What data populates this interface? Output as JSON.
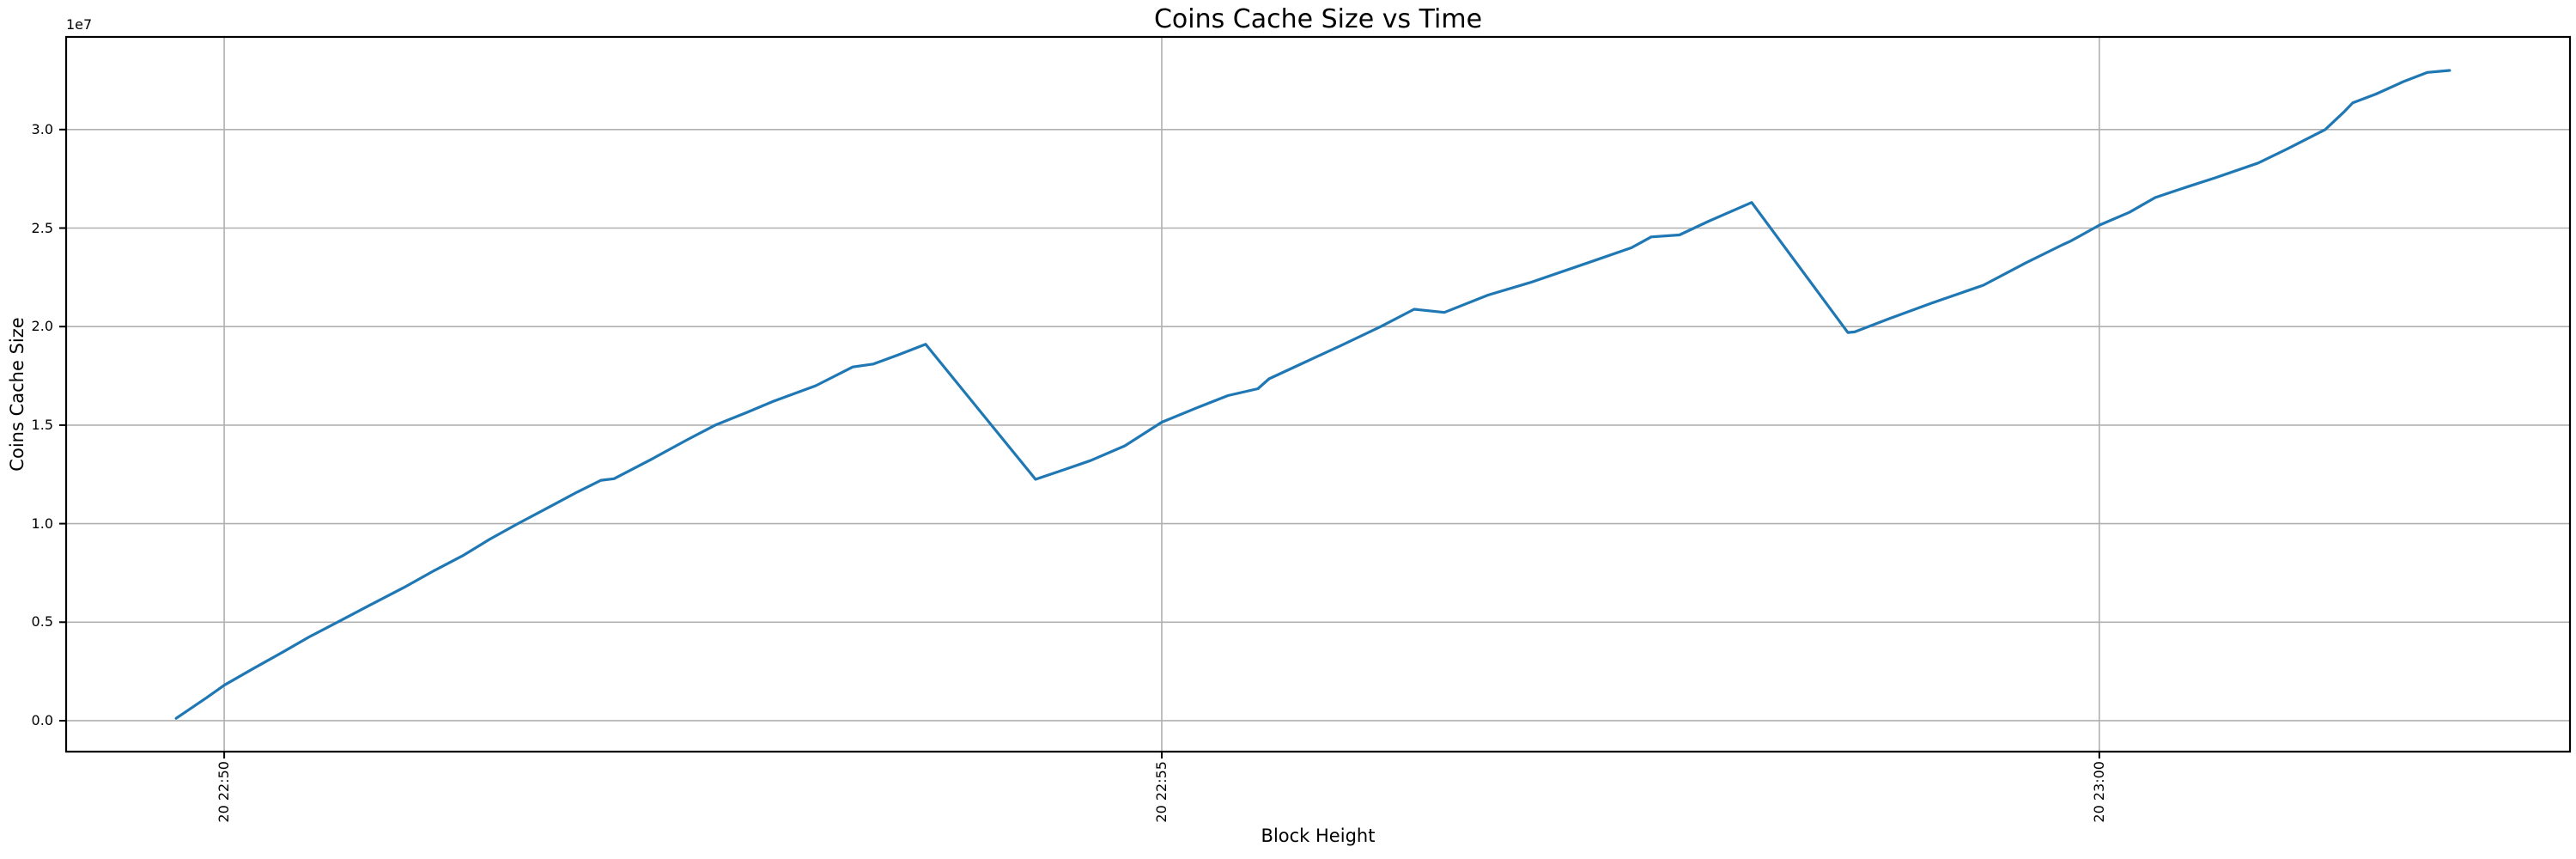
{
  "chart_data": {
    "type": "line",
    "title": "Coins Cache Size vs Time",
    "xlabel": "Block Height",
    "ylabel": "Coins Cache Size",
    "y_offset_text": "1e7",
    "grid": true,
    "legend_position": "none",
    "line_color": "#1f77b4",
    "grid_color": "#b0b0b0",
    "spine_color": "#000000",
    "text_color": "#000000",
    "x_unit": "minutes after first x tick (tick labels show 'day HH:MM')",
    "x_tick_labels": [
      "20 22:50",
      "20 22:55",
      "20 23:00"
    ],
    "x_tick_positions": [
      0,
      5,
      10
    ],
    "y_tick_values_1e7": [
      0.0,
      0.5,
      1.0,
      1.5,
      2.0,
      2.5,
      3.0
    ],
    "xlim": [
      -0.843,
      12.51
    ],
    "ylim": [
      -1570000,
      34700000
    ],
    "series": [
      {
        "name": "coins_cache_size",
        "points": [
          [
            -0.256,
            120000
          ],
          [
            -0.096,
            1150000
          ],
          [
            0.0,
            1800000
          ],
          [
            0.156,
            2650000
          ],
          [
            0.316,
            3500000
          ],
          [
            0.453,
            4250000
          ],
          [
            0.604,
            5000000
          ],
          [
            0.774,
            5850000
          ],
          [
            0.957,
            6750000
          ],
          [
            1.117,
            7600000
          ],
          [
            1.277,
            8400000
          ],
          [
            1.415,
            9200000
          ],
          [
            1.566,
            10000000
          ],
          [
            1.735,
            10850000
          ],
          [
            1.882,
            11600000
          ],
          [
            2.01,
            12200000
          ],
          [
            2.079,
            12280000
          ],
          [
            2.285,
            13300000
          ],
          [
            2.468,
            14250000
          ],
          [
            2.619,
            15000000
          ],
          [
            2.789,
            15650000
          ],
          [
            2.926,
            16200000
          ],
          [
            3.155,
            17000000
          ],
          [
            3.352,
            17950000
          ],
          [
            3.462,
            18100000
          ],
          [
            3.59,
            18550000
          ],
          [
            3.741,
            19100000
          ],
          [
            4.327,
            12250000
          ],
          [
            4.483,
            12750000
          ],
          [
            4.62,
            13200000
          ],
          [
            4.803,
            13950000
          ],
          [
            5.0,
            15150000
          ],
          [
            5.192,
            15900000
          ],
          [
            5.353,
            16500000
          ],
          [
            5.513,
            16850000
          ],
          [
            5.572,
            17350000
          ],
          [
            5.765,
            18200000
          ],
          [
            5.948,
            19000000
          ],
          [
            6.168,
            20000000
          ],
          [
            6.346,
            20880000
          ],
          [
            6.507,
            20720000
          ],
          [
            6.74,
            21600000
          ],
          [
            6.969,
            22250000
          ],
          [
            7.276,
            23250000
          ],
          [
            7.505,
            24000000
          ],
          [
            7.61,
            24550000
          ],
          [
            7.761,
            24650000
          ],
          [
            7.917,
            25350000
          ],
          [
            8.146,
            26300000
          ],
          [
            8.659,
            19700000
          ],
          [
            8.695,
            19730000
          ],
          [
            8.879,
            20400000
          ],
          [
            9.107,
            21200000
          ],
          [
            9.382,
            22100000
          ],
          [
            9.611,
            23250000
          ],
          [
            9.803,
            24150000
          ],
          [
            9.849,
            24350000
          ],
          [
            10.0,
            25150000
          ],
          [
            10.16,
            25800000
          ],
          [
            10.298,
            26550000
          ],
          [
            10.472,
            27100000
          ],
          [
            10.618,
            27550000
          ],
          [
            10.847,
            28300000
          ],
          [
            10.998,
            29000000
          ],
          [
            11.205,
            30000000
          ],
          [
            11.305,
            30900000
          ],
          [
            11.351,
            31350000
          ],
          [
            11.475,
            31800000
          ],
          [
            11.626,
            32450000
          ],
          [
            11.75,
            32900000
          ],
          [
            11.81,
            32950000
          ],
          [
            11.868,
            33000000
          ]
        ]
      }
    ]
  }
}
